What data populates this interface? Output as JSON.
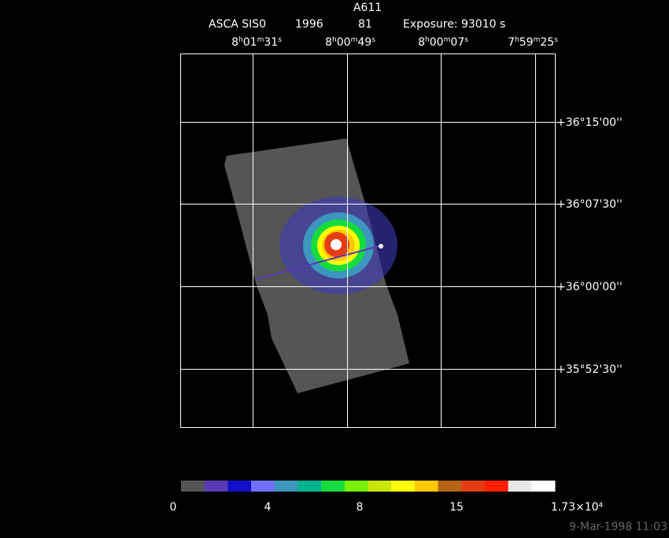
{
  "header": {
    "title": "A611",
    "instrument": "ASCA SIS0",
    "year": "1996",
    "number": "81",
    "exposure": "Exposure: 93010 s"
  },
  "ra_labels": [
    "8h01m31s",
    "8h00m49s",
    "8h00m07s",
    "7h59m25s"
  ],
  "dec_labels": [
    "+36°15'00''",
    "+36°07'30''",
    "+36°00'00''",
    "+35°52'30''"
  ],
  "colorbar": {
    "colors": [
      "#555555",
      "#5a3ab4",
      "#1010c8",
      "#7070ff",
      "#3c96be",
      "#00b48c",
      "#14dc3c",
      "#78f000",
      "#c8e600",
      "#ffff00",
      "#ffc800",
      "#b46414",
      "#e63c14",
      "#ff1e00",
      "#e6e6e6",
      "#ffffff"
    ],
    "labels": [
      "0",
      "4",
      "8",
      "15",
      "1.73×10⁴"
    ]
  },
  "footer": {
    "date": "9-Mar-1998 11:03"
  }
}
